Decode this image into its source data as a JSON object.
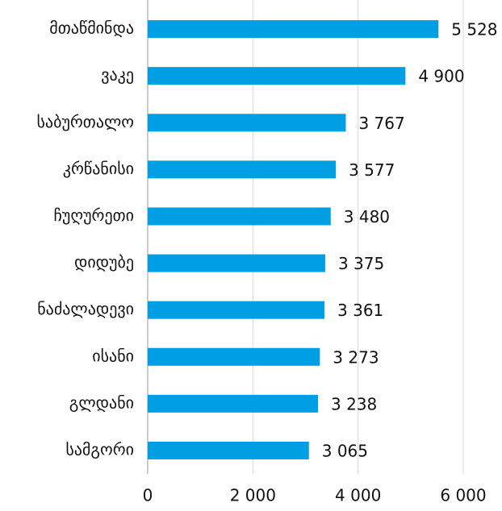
{
  "chart_data": {
    "type": "hbar",
    "categories": [
      "მთაწმინდა",
      "ვაკე",
      "საბურთალო",
      "კრწანისი",
      "ჩუღურეთი",
      "დიდუბე",
      "ნაძალადევი",
      "ისანი",
      "გლდანი",
      "სამგორი"
    ],
    "values": [
      5528,
      4900,
      3767,
      3577,
      3480,
      3375,
      3361,
      3273,
      3238,
      3065
    ],
    "value_labels": [
      "5 528",
      "4 900",
      "3 767",
      "3 577",
      "3 480",
      "3 375",
      "3 361",
      "3 273",
      "3 238",
      "3 065"
    ],
    "color": "#009fe3",
    "xlim": [
      0,
      6000
    ],
    "xticks": [
      0,
      {
        "value": 2000,
        "label": "2 000"
      },
      {
        "value": 4000,
        "label": "4 000"
      },
      {
        "value": 6000,
        "label": "6 000"
      }
    ],
    "grid": true
  }
}
